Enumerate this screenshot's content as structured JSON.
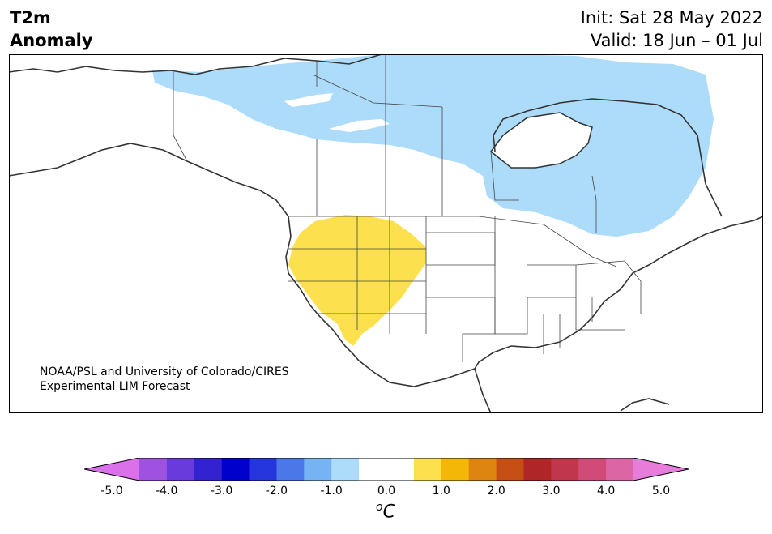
{
  "title": {
    "left_line1": "T2m",
    "left_line2": "Anomaly",
    "right_line1": "Init: Sat 28 May 2022",
    "right_line2": "Valid: 18 Jun – 01 Jul"
  },
  "map": {
    "region": "North America",
    "anomaly_regions": [
      {
        "label_value": "-1.0",
        "color": "#addcfa",
        "area": "Canada"
      },
      {
        "label_value": "1.0",
        "color": "#fde04e",
        "area": "Western United States"
      }
    ]
  },
  "credit": {
    "line1": "NOAA/PSL and University of Colorado/CIRES",
    "line2": "Experimental LIM Forecast"
  },
  "colorbar": {
    "colors": [
      "#da71ea",
      "#9e52df",
      "#6a3bdc",
      "#3322d0",
      "#0000cc",
      "#2436dc",
      "#4a78e9",
      "#76b3f4",
      "#addcfa",
      "#ffffff",
      "#ffffff",
      "#fde04e",
      "#f4b607",
      "#de8410",
      "#c64f15",
      "#b02525",
      "#c0374c",
      "#d04b77",
      "#dc65a5",
      "#e77cdb"
    ],
    "tick_labels": [
      "-5.0",
      "-4.0",
      "-3.0",
      "-2.0",
      "-1.0",
      "0.0",
      "1.0",
      "2.0",
      "3.0",
      "4.0",
      "5.0"
    ],
    "unit_base": "C",
    "unit_sup": "o",
    "extend": "both"
  }
}
